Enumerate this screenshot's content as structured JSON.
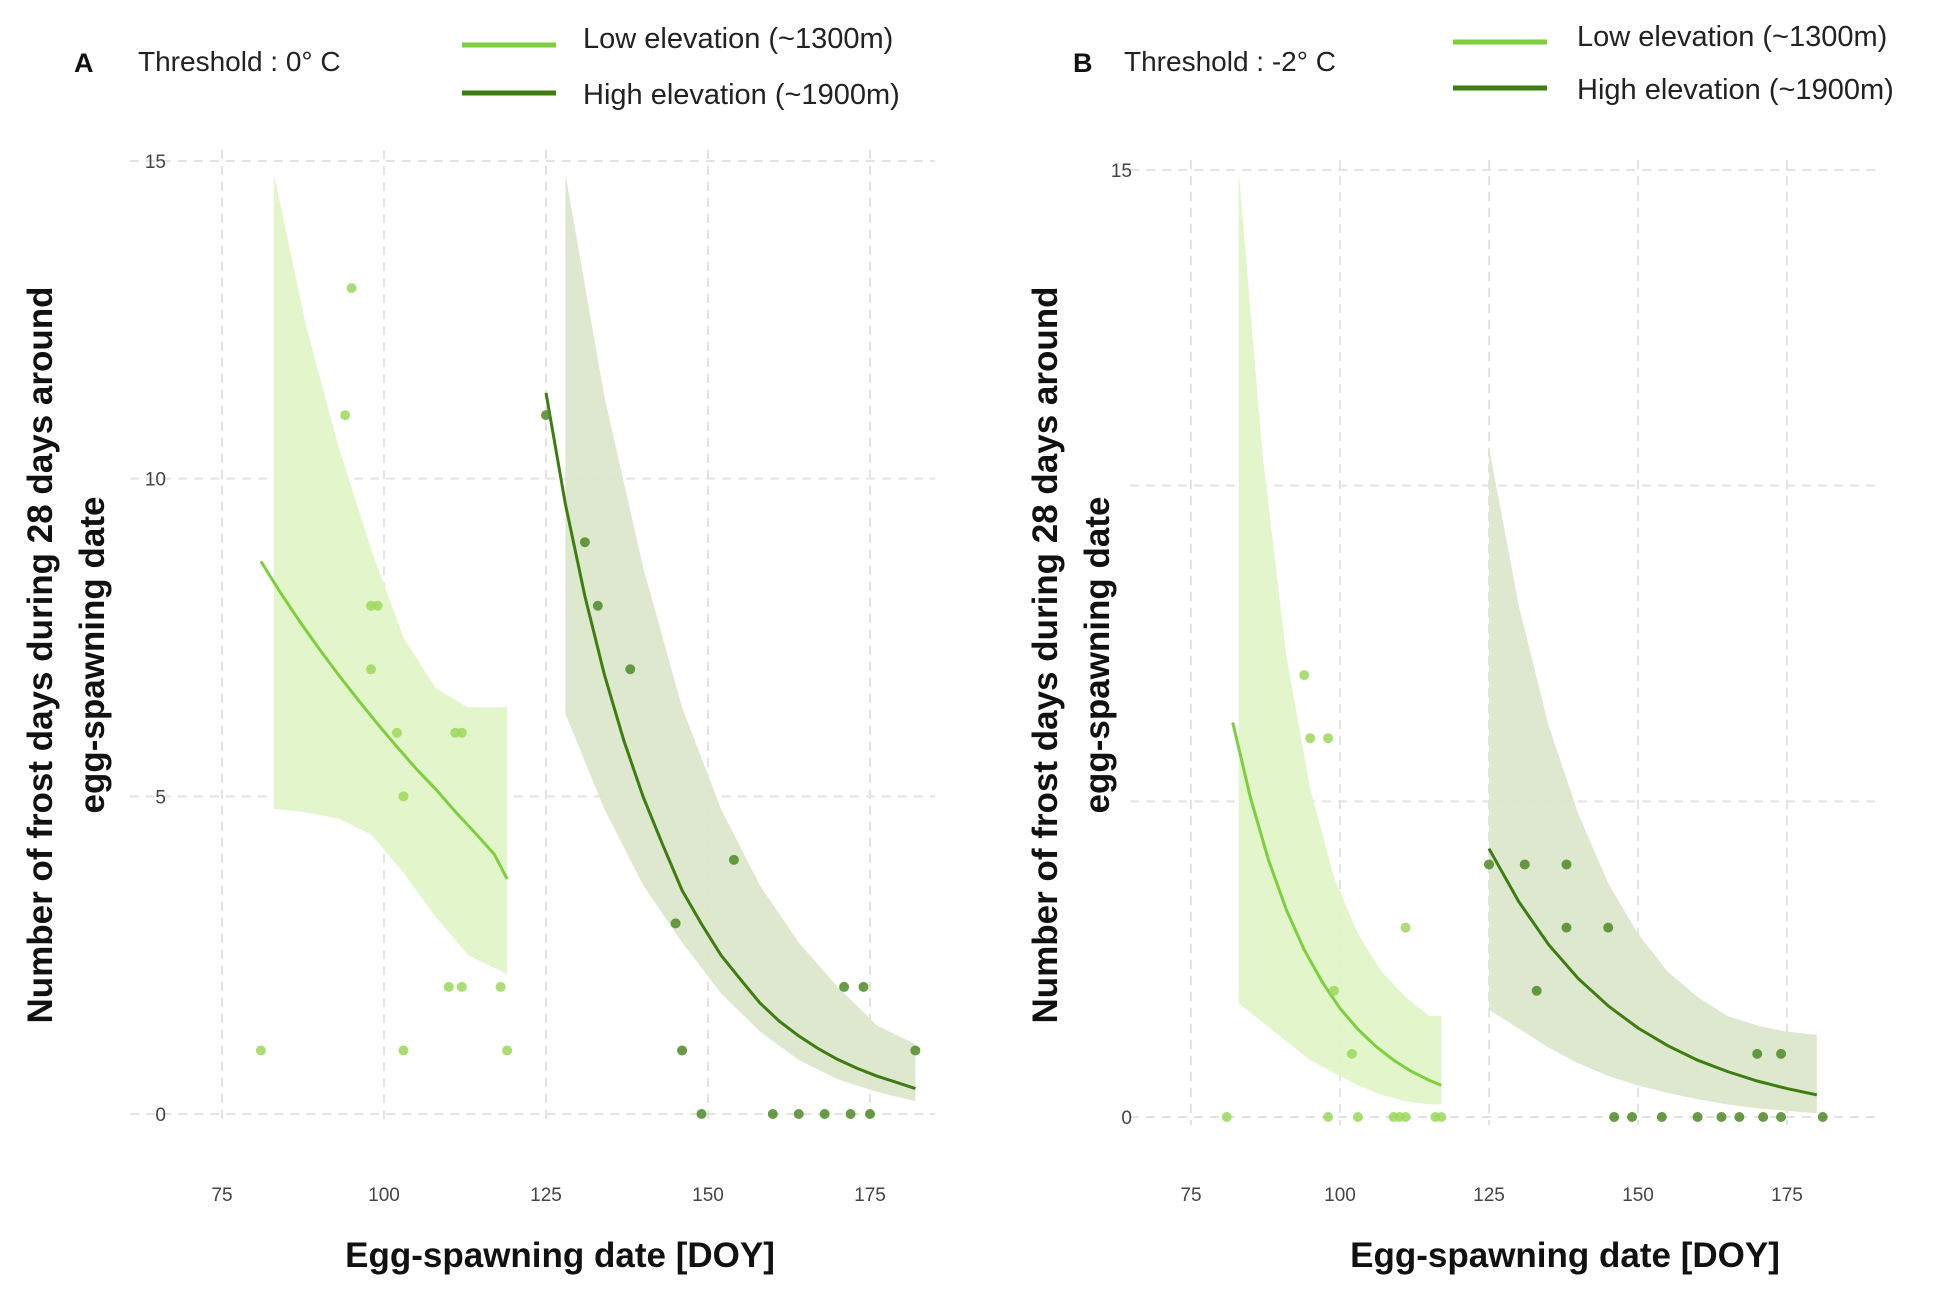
{
  "colors": {
    "low_line": "#7dcf3e",
    "low_band": "#e2f5c8",
    "low_point": "#9bd85a",
    "high_line": "#3e7d10",
    "high_band": "#dbe7cc",
    "high_point": "#4e8a26",
    "grid": "#e3e3e3"
  },
  "chart_data": [
    {
      "type": "scatter",
      "panel": "A",
      "title": "Threshold : 0°   C",
      "xlabel": "Egg-spawning date [DOY]",
      "ylabel": [
        "Number of frost days during 28 days around",
        "egg-spawning date"
      ],
      "xlim": [
        70,
        187
      ],
      "ylim": [
        -0.5,
        15.3
      ],
      "xticks": [
        75,
        100,
        125,
        150,
        175
      ],
      "xtick_labels": [
        "75",
        "100",
        "125",
        "150",
        "175"
      ],
      "yticks": [
        0,
        5,
        10,
        15
      ],
      "ytick_labels": [
        "0",
        "5",
        "10",
        "15"
      ],
      "legend": [
        "Low elevation (~1300m)",
        "High elevation (~1900m)"
      ],
      "series": [
        {
          "name": "Low elevation (~1300m)",
          "color_key": "low",
          "points": [
            [
              81,
              1
            ],
            [
              94,
              11
            ],
            [
              95,
              13
            ],
            [
              98,
              8
            ],
            [
              98,
              7
            ],
            [
              99,
              8
            ],
            [
              102,
              6
            ],
            [
              103,
              1
            ],
            [
              103,
              5
            ],
            [
              110,
              2
            ],
            [
              111,
              6
            ],
            [
              112,
              6
            ],
            [
              112,
              2
            ],
            [
              118,
              2
            ],
            [
              119,
              1
            ]
          ],
          "fit": {
            "x": [
              81,
              84,
              87,
              90,
              93,
              96,
              99,
              102,
              105,
              108,
              111,
              114,
              117,
              119
            ],
            "y": [
              8.7,
              8.21,
              7.75,
              7.32,
              6.91,
              6.52,
              6.14,
              5.78,
              5.43,
              5.11,
              4.76,
              4.43,
              4.09,
              3.7
            ]
          },
          "band": {
            "x": [
              83,
              88,
              93,
              98,
              103,
              108,
              113,
              119
            ],
            "upper": [
              14.8,
              12.4,
              10.5,
              8.9,
              7.5,
              6.7,
              6.4,
              6.4
            ],
            "lower": [
              4.8,
              4.75,
              4.65,
              4.4,
              3.8,
              3.1,
              2.5,
              2.2
            ]
          }
        },
        {
          "name": "High elevation (~1900m)",
          "color_key": "high",
          "points": [
            [
              125,
              11
            ],
            [
              131,
              9
            ],
            [
              133,
              8
            ],
            [
              138,
              7
            ],
            [
              145,
              3
            ],
            [
              146,
              1
            ],
            [
              149,
              0
            ],
            [
              154,
              4
            ],
            [
              160,
              0
            ],
            [
              164,
              0
            ],
            [
              168,
              0
            ],
            [
              171,
              2
            ],
            [
              172,
              0
            ],
            [
              174,
              2
            ],
            [
              175,
              0
            ],
            [
              182,
              1
            ]
          ],
          "fit": {
            "x": [
              125,
              128,
              131,
              134,
              137,
              140,
              143,
              146,
              149,
              152,
              155,
              158,
              161,
              164,
              167,
              170,
              173,
              176,
              179,
              182
            ],
            "y": [
              11.35,
              9.6,
              8.15,
              6.92,
              5.88,
              4.99,
              4.24,
              3.52,
              2.99,
              2.5,
              2.12,
              1.75,
              1.46,
              1.23,
              1.03,
              0.86,
              0.72,
              0.6,
              0.5,
              0.4
            ]
          },
          "band": {
            "x": [
              128,
              134,
              140,
              146,
              152,
              158,
              164,
              170,
              176,
              182
            ],
            "upper": [
              14.8,
              11.3,
              8.6,
              6.4,
              4.8,
              3.6,
              2.7,
              2.0,
              1.4,
              1.1
            ],
            "lower": [
              6.3,
              4.8,
              3.6,
              2.7,
              1.9,
              1.3,
              0.85,
              0.55,
              0.35,
              0.2
            ]
          }
        }
      ]
    },
    {
      "type": "scatter",
      "panel": "B",
      "title": "Threshold : -2°   C",
      "xlabel": "Egg-spawning date [DOY]",
      "ylabel": [
        "Number of frost days during 28 days around",
        "egg-spawning date"
      ],
      "xlim": [
        70,
        187
      ],
      "ylim": [
        -0.7,
        15.5
      ],
      "xticks": [
        75,
        100,
        125,
        150,
        175
      ],
      "xtick_labels": [
        "75",
        "100",
        "125",
        "150",
        "175"
      ],
      "yticks": [
        0,
        15
      ],
      "ytick_labels": [
        "0",
        "15"
      ],
      "grid_y": [
        0,
        5,
        10,
        15
      ],
      "legend": [
        "Low elevation (~1300m)",
        "High elevation (~1900m)"
      ],
      "series": [
        {
          "name": "Low elevation (~1300m)",
          "color_key": "low",
          "points": [
            [
              81,
              0
            ],
            [
              94,
              7
            ],
            [
              95,
              6
            ],
            [
              98,
              0
            ],
            [
              98,
              6
            ],
            [
              99,
              2
            ],
            [
              102,
              1
            ],
            [
              103,
              0
            ],
            [
              109,
              0
            ],
            [
              110,
              0
            ],
            [
              111,
              3
            ],
            [
              111,
              0
            ],
            [
              116,
              0
            ],
            [
              117,
              0
            ]
          ],
          "fit": {
            "x": [
              82,
              85,
              88,
              91,
              94,
              97,
              100,
              103,
              106,
              109,
              112,
              115,
              117
            ],
            "y": [
              6.25,
              5.05,
              4.07,
              3.28,
              2.65,
              2.14,
              1.72,
              1.39,
              1.12,
              0.9,
              0.72,
              0.58,
              0.5
            ]
          },
          "band": {
            "x": [
              83,
              87,
              91,
              95,
              99,
              103,
              107,
              111,
              115,
              117
            ],
            "upper": [
              15.0,
              10.5,
              7.3,
              5.2,
              3.8,
              2.9,
              2.3,
              1.9,
              1.6,
              1.6
            ],
            "lower": [
              1.8,
              1.5,
              1.2,
              0.9,
              0.7,
              0.5,
              0.35,
              0.25,
              0.2,
              0.2
            ]
          }
        },
        {
          "name": "High elevation (~1900m)",
          "color_key": "high",
          "points": [
            [
              125,
              4
            ],
            [
              131,
              4
            ],
            [
              133,
              2
            ],
            [
              138,
              4
            ],
            [
              138,
              3
            ],
            [
              145,
              3
            ],
            [
              146,
              0
            ],
            [
              149,
              0
            ],
            [
              154,
              0
            ],
            [
              160,
              0
            ],
            [
              164,
              0
            ],
            [
              167,
              0
            ],
            [
              170,
              1
            ],
            [
              171,
              0
            ],
            [
              174,
              1
            ],
            [
              174,
              0
            ],
            [
              181,
              0
            ]
          ],
          "fit": {
            "x": [
              125,
              130,
              135,
              140,
              145,
              150,
              155,
              160,
              165,
              170,
              175,
              180
            ],
            "y": [
              4.25,
              3.41,
              2.73,
              2.19,
              1.76,
              1.41,
              1.13,
              0.9,
              0.72,
              0.57,
              0.45,
              0.35
            ]
          },
          "band": {
            "x": [
              125,
              130,
              135,
              140,
              145,
              150,
              155,
              160,
              165,
              170,
              175,
              180
            ],
            "upper": [
              10.6,
              8.1,
              6.2,
              4.8,
              3.7,
              2.9,
              2.3,
              1.9,
              1.6,
              1.45,
              1.35,
              1.3
            ],
            "lower": [
              1.7,
              1.4,
              1.1,
              0.85,
              0.65,
              0.5,
              0.38,
              0.28,
              0.2,
              0.14,
              0.1,
              0.06
            ]
          }
        }
      ]
    }
  ]
}
